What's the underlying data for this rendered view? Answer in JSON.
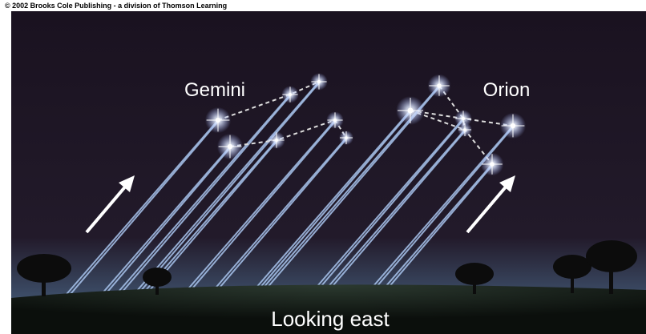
{
  "credit": "© 2002 Brooks Cole Publishing - a division of Thomson Learning",
  "constellations": [
    "Gemini",
    "Orion"
  ],
  "caption": "Looking east"
}
